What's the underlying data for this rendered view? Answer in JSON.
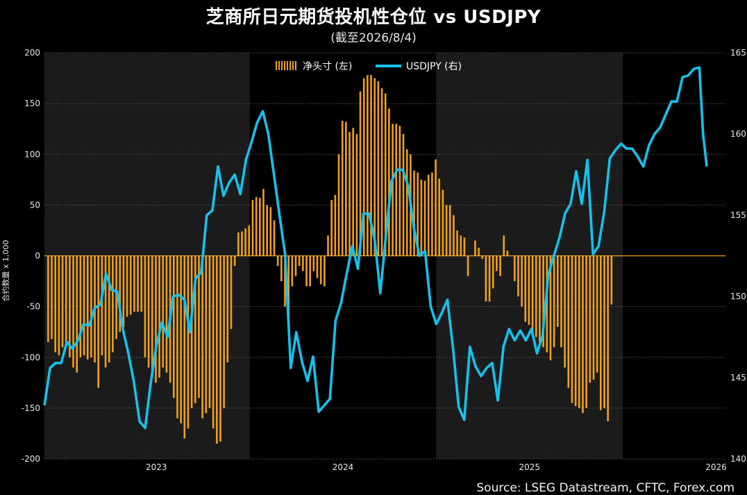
{
  "chart_data": {
    "type": "bar+line",
    "title": "芝商所日元期货投机性仓位 vs USDJPY",
    "subtitle": "(截至2026/8/4)",
    "source": "Source: LSEG Datastream, CFTC, Forex.com",
    "ylabel_left": "合约数量 x 1,000",
    "ylim_left": [
      -200,
      200
    ],
    "yticks_left": [
      -200,
      -150,
      -100,
      -50,
      0,
      50,
      100,
      150,
      200
    ],
    "ylim_right": [
      140,
      165
    ],
    "yticks_right": [
      140,
      145,
      150,
      155,
      160,
      165
    ],
    "x_year_labels": [
      "2023",
      "2024",
      "2025",
      "2026"
    ],
    "x_start": 2022.9,
    "x_end": 2026.55,
    "legend_position": "top-center",
    "colors": {
      "bars": "#f0a11f",
      "line": "#17c1ee",
      "background": "#000000",
      "band": "#1b1b1b"
    },
    "series": [
      {
        "name": "净头寸 (左)",
        "type": "bar",
        "x_start": 2022.92,
        "x_step": 0.01923,
        "values": [
          -85,
          -82,
          -95,
          -98,
          -90,
          -85,
          -100,
          -110,
          -115,
          -100,
          -98,
          -102,
          -100,
          -105,
          -130,
          -98,
          -110,
          -105,
          -95,
          -82,
          -75,
          -70,
          -60,
          -58,
          -55,
          -55,
          -55,
          -100,
          -110,
          -120,
          -125,
          -120,
          -110,
          -115,
          -125,
          -140,
          -160,
          -165,
          -180,
          -170,
          -150,
          -145,
          -140,
          -160,
          -155,
          -150,
          -170,
          -185,
          -183,
          -150,
          -105,
          -72,
          -10,
          23,
          24,
          27,
          30,
          55,
          58,
          57,
          66,
          50,
          48,
          35,
          -10,
          -25,
          -50,
          -65,
          -30,
          -20,
          -10,
          -15,
          -30,
          -30,
          -15,
          -22,
          -28,
          -30,
          20,
          55,
          60,
          100,
          133,
          132,
          122,
          126,
          120,
          162,
          175,
          178,
          178,
          175,
          172,
          165,
          160,
          145,
          130,
          130,
          128,
          120,
          105,
          100,
          84,
          82,
          75,
          74,
          80,
          82,
          95,
          76,
          65,
          50,
          50,
          40,
          25,
          20,
          18,
          -20,
          0,
          15,
          8,
          -3,
          -45,
          -45,
          -32,
          -15,
          -20,
          20,
          5,
          0,
          -25,
          -40,
          -50,
          -65,
          -68,
          -75,
          -80,
          -85,
          -90,
          -95,
          -103,
          -90,
          -70,
          -90,
          -110,
          -130,
          -145,
          -148,
          -150,
          -155,
          -150,
          -125,
          -122,
          -115,
          -152,
          -150,
          -163,
          -48
        ]
      },
      {
        "name": "USDJPY (右)",
        "type": "line",
        "points": [
          [
            2022.9,
            143.3
          ],
          [
            2022.93,
            145.6
          ],
          [
            2022.96,
            145.9
          ],
          [
            2022.99,
            145.9
          ],
          [
            2023.02,
            147.2
          ],
          [
            2023.05,
            146.8
          ],
          [
            2023.08,
            147.3
          ],
          [
            2023.11,
            148.3
          ],
          [
            2023.14,
            148.2
          ],
          [
            2023.17,
            149.3
          ],
          [
            2023.2,
            149.5
          ],
          [
            2023.23,
            151.4
          ],
          [
            2023.26,
            150.4
          ],
          [
            2023.29,
            150.3
          ],
          [
            2023.32,
            148.0
          ],
          [
            2023.35,
            146.5
          ],
          [
            2023.38,
            144.7
          ],
          [
            2023.41,
            142.3
          ],
          [
            2023.44,
            141.9
          ],
          [
            2023.47,
            144.7
          ],
          [
            2023.5,
            147.0
          ],
          [
            2023.53,
            148.4
          ],
          [
            2023.56,
            147.5
          ],
          [
            2023.59,
            150.0
          ],
          [
            2023.62,
            150.1
          ],
          [
            2023.65,
            149.8
          ],
          [
            2023.68,
            147.8
          ],
          [
            2023.71,
            151.1
          ],
          [
            2023.74,
            151.5
          ],
          [
            2023.77,
            155.0
          ],
          [
            2023.8,
            155.3
          ],
          [
            2023.83,
            158.0
          ],
          [
            2023.86,
            156.2
          ],
          [
            2023.89,
            157.0
          ],
          [
            2023.92,
            157.5
          ],
          [
            2023.95,
            156.3
          ],
          [
            2023.98,
            158.4
          ],
          [
            2024.01,
            159.5
          ],
          [
            2024.04,
            160.7
          ],
          [
            2024.07,
            161.4
          ],
          [
            2024.1,
            160.0
          ],
          [
            2024.13,
            157.5
          ],
          [
            2024.16,
            155.0
          ],
          [
            2024.19,
            152.6
          ],
          [
            2024.22,
            145.6
          ],
          [
            2024.25,
            147.8
          ],
          [
            2024.28,
            146.0
          ],
          [
            2024.31,
            144.8
          ],
          [
            2024.34,
            146.3
          ],
          [
            2024.37,
            142.9
          ],
          [
            2024.4,
            143.3
          ],
          [
            2024.43,
            143.7
          ],
          [
            2024.46,
            148.5
          ],
          [
            2024.49,
            149.6
          ],
          [
            2024.52,
            151.4
          ],
          [
            2024.55,
            153.1
          ],
          [
            2024.58,
            151.7
          ],
          [
            2024.61,
            155.1
          ],
          [
            2024.64,
            155.1
          ],
          [
            2024.67,
            153.5
          ],
          [
            2024.7,
            150.2
          ],
          [
            2024.73,
            153.7
          ],
          [
            2024.76,
            157.1
          ],
          [
            2024.79,
            157.8
          ],
          [
            2024.82,
            157.8
          ],
          [
            2024.85,
            156.8
          ],
          [
            2024.88,
            154.2
          ],
          [
            2024.91,
            152.5
          ],
          [
            2024.94,
            152.8
          ],
          [
            2024.97,
            149.4
          ],
          [
            2025.0,
            148.3
          ],
          [
            2025.03,
            149.0
          ],
          [
            2025.06,
            149.8
          ],
          [
            2025.09,
            146.8
          ],
          [
            2025.12,
            143.2
          ],
          [
            2025.15,
            142.4
          ],
          [
            2025.18,
            146.9
          ],
          [
            2025.21,
            145.7
          ],
          [
            2025.24,
            145.1
          ],
          [
            2025.27,
            145.6
          ],
          [
            2025.3,
            145.9
          ],
          [
            2025.33,
            143.6
          ],
          [
            2025.36,
            146.9
          ],
          [
            2025.39,
            148.0
          ],
          [
            2025.42,
            147.3
          ],
          [
            2025.45,
            147.9
          ],
          [
            2025.48,
            147.3
          ],
          [
            2025.51,
            148.0
          ],
          [
            2025.54,
            146.5
          ],
          [
            2025.57,
            147.6
          ],
          [
            2025.6,
            151.3
          ],
          [
            2025.63,
            152.5
          ],
          [
            2025.66,
            153.6
          ],
          [
            2025.69,
            155.1
          ],
          [
            2025.72,
            155.7
          ],
          [
            2025.75,
            157.7
          ],
          [
            2025.78,
            155.7
          ],
          [
            2025.81,
            158.4
          ],
          [
            2025.84,
            152.6
          ],
          [
            2025.87,
            153.1
          ],
          [
            2025.9,
            155.2
          ],
          [
            2025.93,
            158.5
          ],
          [
            2025.96,
            159.0
          ],
          [
            2025.99,
            159.4
          ],
          [
            2026.02,
            159.1
          ],
          [
            2026.05,
            159.1
          ],
          [
            2026.08,
            158.6
          ],
          [
            2026.11,
            158.0
          ],
          [
            2026.14,
            159.3
          ],
          [
            2026.17,
            160.0
          ],
          [
            2026.2,
            160.4
          ],
          [
            2026.23,
            161.2
          ],
          [
            2026.26,
            162.0
          ],
          [
            2026.29,
            162.0
          ],
          [
            2026.32,
            163.5
          ],
          [
            2026.35,
            163.6
          ],
          [
            2026.38,
            164.0
          ],
          [
            2026.41,
            164.1
          ],
          [
            2026.43,
            160.0
          ],
          [
            2026.45,
            158.0
          ]
        ]
      }
    ]
  }
}
